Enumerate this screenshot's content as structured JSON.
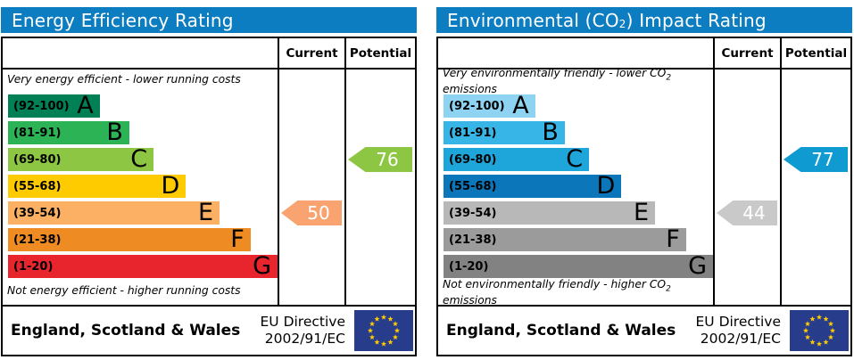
{
  "theme": {
    "header_bg": "#0d7dc1",
    "border": "#000000",
    "text_on_header": "#ffffff"
  },
  "panels": [
    {
      "title": {
        "pre": "Energy Efficiency Rating",
        "sub": "",
        "post": ""
      },
      "columns": {
        "current": "Current",
        "potential": "Potential"
      },
      "captions": {
        "top": {
          "pre": "Very energy efficient - lower running costs",
          "sub": "",
          "post": ""
        },
        "bottom": {
          "pre": "Not energy efficient - higher running costs",
          "sub": "",
          "post": ""
        }
      },
      "bands": [
        {
          "range": "(92-100)",
          "letter": "A",
          "color": "#008054",
          "width_pct": 34
        },
        {
          "range": "(81-91)",
          "letter": "B",
          "color": "#2bb356",
          "width_pct": 45
        },
        {
          "range": "(69-80)",
          "letter": "C",
          "color": "#8dc642",
          "width_pct": 54
        },
        {
          "range": "(55-68)",
          "letter": "D",
          "color": "#fecb00",
          "width_pct": 66
        },
        {
          "range": "(39-54)",
          "letter": "E",
          "color": "#fbb064",
          "width_pct": 78.5
        },
        {
          "range": "(21-38)",
          "letter": "F",
          "color": "#ee8b22",
          "width_pct": 90
        },
        {
          "range": "(1-20)",
          "letter": "G",
          "color": "#e8242d",
          "width_pct": 100
        }
      ],
      "current": {
        "value": "50",
        "band": "E",
        "color": "#f9a470"
      },
      "potential": {
        "value": "76",
        "band": "C",
        "color": "#8dc642"
      },
      "footer": {
        "region": "England, Scotland & Wales",
        "directive_line1": "EU Directive",
        "directive_line2": "2002/91/EC",
        "flag": {
          "name": "eu-flag",
          "background": "#283c8c",
          "stars": "#ffcc00",
          "star_count": 12
        }
      }
    },
    {
      "title": {
        "pre": "Environmental (CO",
        "sub": "2",
        "post": ") Impact Rating"
      },
      "columns": {
        "current": "Current",
        "potential": "Potential"
      },
      "captions": {
        "top": {
          "pre": "Very environmentally friendly - lower CO",
          "sub": "2",
          "post": " emissions"
        },
        "bottom": {
          "pre": "Not environmentally friendly - higher CO",
          "sub": "2",
          "post": " emissions"
        }
      },
      "bands": [
        {
          "range": "(92-100)",
          "letter": "A",
          "color": "#8ed4f2",
          "width_pct": 34
        },
        {
          "range": "(81-91)",
          "letter": "B",
          "color": "#36b5e6",
          "width_pct": 45
        },
        {
          "range": "(69-80)",
          "letter": "C",
          "color": "#1ea5da",
          "width_pct": 54
        },
        {
          "range": "(55-68)",
          "letter": "D",
          "color": "#0b76ba",
          "width_pct": 66
        },
        {
          "range": "(39-54)",
          "letter": "E",
          "color": "#b8b8b8",
          "width_pct": 78.5
        },
        {
          "range": "(21-38)",
          "letter": "F",
          "color": "#9b9b9b",
          "width_pct": 90
        },
        {
          "range": "(1-20)",
          "letter": "G",
          "color": "#828282",
          "width_pct": 100
        }
      ],
      "current": {
        "value": "44",
        "band": "E",
        "color": "#c9c9c9"
      },
      "potential": {
        "value": "77",
        "band": "C",
        "color": "#0f9ad2"
      },
      "footer": {
        "region": "England, Scotland & Wales",
        "directive_line1": "EU Directive",
        "directive_line2": "2002/91/EC",
        "flag": {
          "name": "eu-flag",
          "background": "#283c8c",
          "stars": "#ffcc00",
          "star_count": 12
        }
      }
    }
  ],
  "chart_data": [
    {
      "type": "bar",
      "title": "Energy Efficiency Rating",
      "subtitle_top": "Very energy efficient - lower running costs",
      "subtitle_bottom": "Not energy efficient - higher running costs",
      "categories": [
        "A",
        "B",
        "C",
        "D",
        "E",
        "F",
        "G"
      ],
      "ranges": [
        "92-100",
        "81-91",
        "69-80",
        "55-68",
        "39-54",
        "21-38",
        "1-20"
      ],
      "band_colors": [
        "#008054",
        "#2bb356",
        "#8dc642",
        "#fecb00",
        "#fbb064",
        "#ee8b22",
        "#e8242d"
      ],
      "band_widths_pct": [
        34,
        45,
        54,
        66,
        78.5,
        90,
        100
      ],
      "series": [
        {
          "name": "Current",
          "value": 50,
          "band": "E",
          "color": "#f9a470"
        },
        {
          "name": "Potential",
          "value": 76,
          "band": "C",
          "color": "#8dc642"
        }
      ],
      "scale": [
        1,
        100
      ],
      "footer": "England, Scotland & Wales",
      "directive": "EU Directive 2002/91/EC",
      "legend_position": "columns-right"
    },
    {
      "type": "bar",
      "title": "Environmental (CO2) Impact Rating",
      "subtitle_top": "Very environmentally friendly - lower CO2 emissions",
      "subtitle_bottom": "Not environmentally friendly - higher CO2 emissions",
      "categories": [
        "A",
        "B",
        "C",
        "D",
        "E",
        "F",
        "G"
      ],
      "ranges": [
        "92-100",
        "81-91",
        "69-80",
        "55-68",
        "39-54",
        "21-38",
        "1-20"
      ],
      "band_colors": [
        "#8ed4f2",
        "#36b5e6",
        "#1ea5da",
        "#0b76ba",
        "#b8b8b8",
        "#9b9b9b",
        "#828282"
      ],
      "band_widths_pct": [
        34,
        45,
        54,
        66,
        78.5,
        90,
        100
      ],
      "series": [
        {
          "name": "Current",
          "value": 44,
          "band": "E",
          "color": "#c9c9c9"
        },
        {
          "name": "Potential",
          "value": 77,
          "band": "C",
          "color": "#0f9ad2"
        }
      ],
      "scale": [
        1,
        100
      ],
      "footer": "England, Scotland & Wales",
      "directive": "EU Directive 2002/91/EC",
      "legend_position": "columns-right"
    }
  ]
}
